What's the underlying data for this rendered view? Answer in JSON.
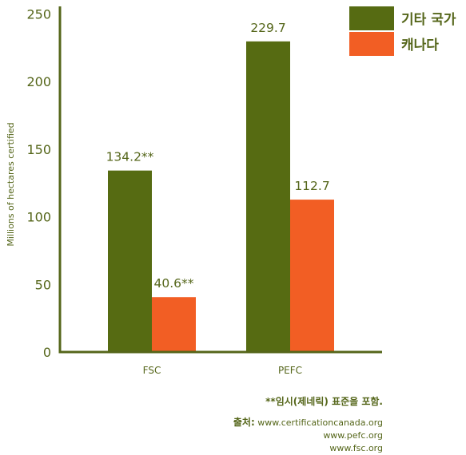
{
  "chart_data": {
    "type": "bar",
    "categories": [
      "FSC",
      "PEFC"
    ],
    "series": [
      {
        "name": "기타 국가",
        "values": [
          134.2,
          229.7
        ],
        "color": "#566b12",
        "data_labels": [
          "134.2**",
          "229.7"
        ]
      },
      {
        "name": "캐나다",
        "values": [
          40.6,
          112.7
        ],
        "color": "#f25e24",
        "data_labels": [
          "40.6**",
          "112.7"
        ]
      }
    ],
    "title": "",
    "xlabel": "",
    "ylabel": "Millions of hectares certified",
    "ylim": [
      0,
      255
    ],
    "yticks": [
      0,
      50,
      100,
      150,
      200,
      250
    ],
    "grid": false,
    "legend": "top-right",
    "axis_color": "#55661a"
  },
  "footnote": "**임시(제네릭) 표준을 포함.",
  "sources": {
    "label": "출처:",
    "lines": [
      "www.certificationcanada.org",
      "www.pefc.org",
      "www.fsc.org"
    ]
  }
}
